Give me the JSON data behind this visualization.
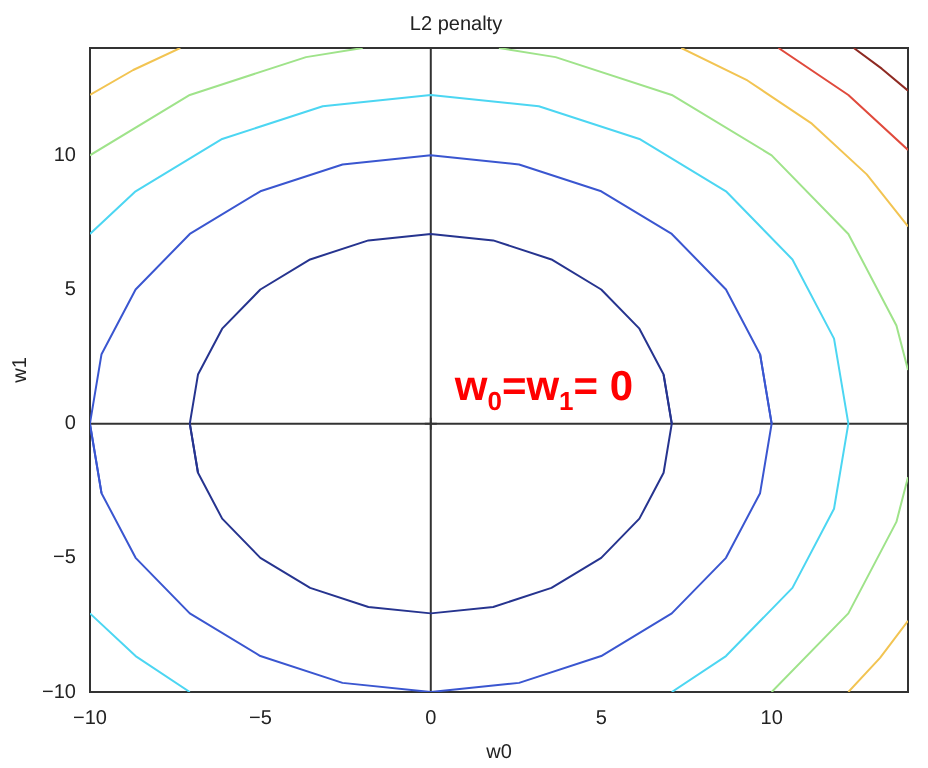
{
  "chart_data": {
    "type": "line",
    "title": "L2 penalty",
    "xlabel": "w0",
    "ylabel": "w1",
    "xlim": [
      -10,
      14
    ],
    "ylim": [
      -10,
      14
    ],
    "xticks": [
      -10,
      -5,
      0,
      5,
      10
    ],
    "yticks": [
      -10,
      -5,
      0,
      5,
      10
    ],
    "grid": false,
    "legend": false,
    "marker": "none",
    "line_style": "solid",
    "series": [
      {
        "color": "#26348f",
        "x": [
          7.07,
          6.83,
          6.12,
          5,
          3.54,
          1.83,
          0,
          -1.83,
          -3.54,
          -5,
          -6.12,
          -6.83,
          -7.07,
          -6.83
        ],
        "values": [
          0,
          1.83,
          3.54,
          5,
          6.12,
          6.83,
          7.07,
          6.83,
          6.12,
          5,
          3.54,
          1.83,
          0,
          -1.83
        ]
      },
      {
        "color": "#26348f",
        "x": [
          -7.07,
          -6.83,
          -6.12,
          -5,
          -3.54,
          -1.83,
          0,
          1.83,
          3.54,
          5,
          6.12,
          6.83,
          7.07,
          6.83
        ],
        "values": [
          0,
          -1.83,
          -3.54,
          -5,
          -6.12,
          -6.83,
          -7.07,
          -6.83,
          -6.12,
          -5,
          -3.54,
          -1.83,
          0,
          1.83
        ]
      },
      {
        "color": "#3a56d0",
        "x": [
          10,
          9.66,
          8.66,
          7.07,
          5,
          2.59,
          0,
          -2.59,
          -5,
          -7.07,
          -8.66,
          -9.66,
          -10,
          -9.66
        ],
        "values": [
          0,
          2.59,
          5,
          7.07,
          8.66,
          9.66,
          10,
          9.66,
          8.66,
          7.07,
          5,
          2.59,
          0,
          -2.59
        ]
      },
      {
        "color": "#3a56d0",
        "x": [
          -10,
          -9.66,
          -8.66,
          -7.07,
          -5,
          -2.59,
          0,
          2.59,
          5,
          7.07,
          8.66,
          9.66,
          10,
          9.66
        ],
        "values": [
          0,
          -2.59,
          -5,
          -7.07,
          -8.66,
          -9.66,
          -10,
          -9.66,
          -8.66,
          -7.07,
          -5,
          -2.59,
          0,
          2.59
        ]
      },
      {
        "color": "#4cd6f2",
        "x": [
          -10,
          -8.66,
          -6.12,
          -3.17,
          0,
          3.17,
          6.12,
          8.66,
          10.61,
          11.83,
          12.25,
          11.83,
          10.61,
          8.66,
          7.07
        ],
        "values": [
          7.07,
          8.66,
          10.61,
          11.83,
          12.25,
          11.83,
          10.61,
          8.66,
          6.12,
          3.17,
          0,
          -3.17,
          -6.12,
          -8.66,
          -10
        ]
      },
      {
        "color": "#4cd6f2",
        "x": [
          -7.07,
          -8.66,
          -10
        ],
        "values": [
          -10,
          -8.66,
          -7.07
        ]
      },
      {
        "color": "#9fe38a",
        "x": [
          -10,
          -7.07,
          -3.66,
          -2
        ],
        "values": [
          10,
          12.25,
          13.66,
          14
        ]
      },
      {
        "color": "#9fe38a",
        "x": [
          2,
          3.66,
          7.07,
          10,
          12.25,
          13.66,
          14
        ],
        "values": [
          14,
          13.66,
          12.25,
          10,
          7.07,
          3.66,
          2
        ]
      },
      {
        "color": "#9fe38a",
        "x": [
          14,
          13.66,
          12.25,
          10
        ],
        "values": [
          -2,
          -3.66,
          -7.07,
          -10
        ]
      },
      {
        "color": "#f2c452",
        "x": [
          -10,
          -8.73,
          -7.35
        ],
        "values": [
          12.25,
          13.18,
          14
        ]
      },
      {
        "color": "#f2c452",
        "x": [
          7.35,
          9.29,
          11.18,
          12.79,
          14
        ],
        "values": [
          14,
          12.79,
          11.18,
          9.29,
          7.35
        ]
      },
      {
        "color": "#f2c452",
        "x": [
          14,
          13.18,
          12.25
        ],
        "values": [
          -7.35,
          -8.73,
          -10
        ]
      },
      {
        "color": "#e04a3c",
        "x": [
          10.2,
          12.25,
          14
        ],
        "values": [
          14,
          12.25,
          10.2
        ]
      },
      {
        "color": "#8e2a22",
        "x": [
          12.41,
          13.23,
          14
        ],
        "values": [
          14,
          13.23,
          12.41
        ]
      },
      {
        "color": "#333333",
        "x": [
          -10,
          14
        ],
        "values": [
          0,
          0
        ]
      },
      {
        "color": "#333333",
        "x": [
          0,
          0
        ],
        "values": [
          -10,
          14
        ]
      },
      {
        "type": "scatter",
        "color": "#555555",
        "marker": "cross",
        "x": [
          0
        ],
        "values": [
          0
        ]
      }
    ],
    "annotations": [
      {
        "text": "w$_{0}$=w$_{1}$= 0",
        "x": 0,
        "y": 0
      }
    ]
  }
}
